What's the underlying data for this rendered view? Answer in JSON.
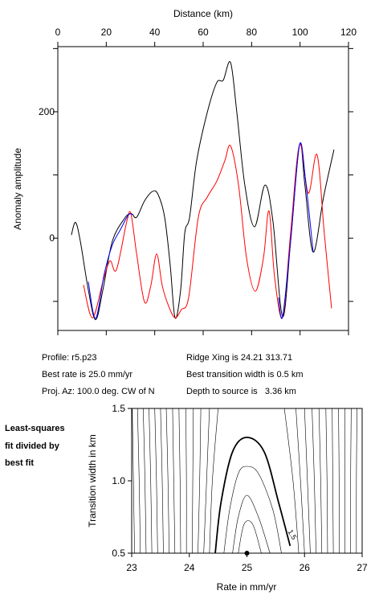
{
  "chart_data": [
    {
      "type": "line",
      "xlabel": "Distance (km)",
      "ylabel": "Anomaly amplitude",
      "xlim": [
        0,
        120
      ],
      "xticks": [
        0,
        20,
        40,
        60,
        80,
        100,
        120
      ],
      "ylim": [
        -146,
        303
      ],
      "yticks": [
        0,
        200
      ],
      "yminor_ticks": [
        -100,
        100,
        300
      ],
      "series": [
        {
          "color": "#000000",
          "x": [
            5.6,
            7.3,
            9.3,
            12.6,
            15.6,
            18.6,
            22.5,
            27.5,
            30.2,
            32.5,
            35.8,
            39.1,
            41.4,
            44.1,
            46.4,
            48.4,
            50.7,
            52.4,
            54.4,
            57.3,
            61.7,
            65.6,
            68.3,
            71.3,
            73.9,
            77.2,
            81.2,
            85.5,
            88.8,
            92.8,
            96.1,
            99.8,
            102,
            105.4,
            109.7,
            114
          ],
          "values": [
            5,
            25,
            -5,
            -82,
            -129,
            -82,
            -5,
            31,
            39,
            33,
            59,
            74,
            69,
            33,
            -43,
            -126,
            -82,
            8,
            33,
            122,
            199,
            246,
            250,
            278,
            199,
            84,
            18,
            84,
            27,
            -124,
            -5,
            148,
            84,
            -22,
            65,
            140
          ]
        },
        {
          "color": "#ff0000",
          "x": [
            10.6,
            14.3,
            18.6,
            21.5,
            24.2,
            28.5,
            30.2,
            32.5,
            35.8,
            38.4,
            40.8,
            43.1,
            45.7,
            48.4,
            51,
            54,
            58,
            61.7,
            65.6,
            68.9,
            71.3,
            74.6,
            77.9,
            81.5,
            84.9,
            87.2,
            89.5,
            92.8,
            96.1,
            99.8,
            103.4,
            107,
            110,
            113
          ],
          "values": [
            -74,
            -126,
            -69,
            -36,
            -50,
            27,
            38,
            -24,
            -101,
            -75,
            -25,
            -75,
            -107,
            -126,
            -113,
            -94,
            33,
            65,
            90,
            122,
            146,
            84,
            -31,
            -84,
            -31,
            43,
            -62,
            -124,
            8,
            148,
            71,
            132,
            8,
            -111
          ]
        },
        {
          "color": "#0000ff",
          "x": [
            12.6,
            15.6,
            19.2,
            22.5,
            25.9,
            29.2,
            31.2,
            null,
            91.1,
            92.8,
            96.1,
            99.8,
            102.4,
            105.4
          ],
          "values": [
            -69,
            -127,
            -56,
            -11,
            14,
            37,
            37,
            null,
            -94,
            -124,
            -5,
            148,
            87,
            -22
          ]
        }
      ]
    },
    {
      "type": "contour",
      "xlabel": "Rate in mm/yr",
      "ylabel": "Transition width in km",
      "xlim": [
        23,
        27
      ],
      "xticks": [
        23,
        24,
        25,
        26,
        27
      ],
      "ylim": [
        0.5,
        1.5
      ],
      "yticks": [
        {
          "value": 0.5,
          "label": "0.5"
        },
        {
          "value": 1.0,
          "label": "1.0"
        },
        {
          "value": 1.5,
          "label": "1.5"
        }
      ],
      "best": {
        "x": 25,
        "y": 0.5
      },
      "contour_label": {
        "x": 25.75,
        "y": 0.62,
        "text": "1.5"
      },
      "bold_contour": 0,
      "contours": [
        {
          "x": [
            24.45,
            24.55,
            24.75,
            25.0,
            25.3,
            25.55,
            25.75
          ],
          "y": [
            0.5,
            0.85,
            1.2,
            1.3,
            1.2,
            0.85,
            0.55
          ]
        },
        {
          "x": [
            24.6,
            24.7,
            24.85,
            25.0,
            25.2,
            25.45,
            25.6
          ],
          "y": [
            0.5,
            0.8,
            1.05,
            1.1,
            1.05,
            0.8,
            0.5
          ]
        },
        {
          "x": [
            24.75,
            24.85,
            25.0,
            25.2,
            25.4
          ],
          "y": [
            0.5,
            0.75,
            0.9,
            0.75,
            0.5
          ]
        },
        {
          "x": [
            24.85,
            24.95,
            25.1,
            25.25
          ],
          "y": [
            0.5,
            0.7,
            0.7,
            0.5
          ]
        },
        {
          "x": [
            24.35,
            24.4,
            24.5
          ],
          "y": [
            0.5,
            1.0,
            1.5
          ]
        },
        {
          "x": [
            24.25,
            24.3,
            24.35
          ],
          "y": [
            0.5,
            1.0,
            1.5
          ]
        },
        {
          "x": [
            24.15,
            24.18,
            24.2
          ],
          "y": [
            0.5,
            1.0,
            1.5
          ]
        },
        {
          "x": [
            24.05,
            24.06,
            24.07
          ],
          "y": [
            0.5,
            1.0,
            1.5
          ]
        },
        {
          "x": [
            23.95,
            23.95,
            23.94
          ],
          "y": [
            0.5,
            1.0,
            1.5
          ]
        },
        {
          "x": [
            23.85,
            23.84,
            23.82
          ],
          "y": [
            0.5,
            1.0,
            1.5
          ]
        },
        {
          "x": [
            23.75,
            23.73,
            23.71
          ],
          "y": [
            0.5,
            1.0,
            1.5
          ]
        },
        {
          "x": [
            23.65,
            23.63,
            23.6
          ],
          "y": [
            0.5,
            1.0,
            1.5
          ]
        },
        {
          "x": [
            23.55,
            23.53,
            23.5
          ],
          "y": [
            0.5,
            1.0,
            1.5
          ]
        },
        {
          "x": [
            23.45,
            23.43,
            23.4
          ],
          "y": [
            0.5,
            1.0,
            1.5
          ]
        },
        {
          "x": [
            23.35,
            23.33,
            23.3
          ],
          "y": [
            0.5,
            1.0,
            1.5
          ]
        },
        {
          "x": [
            23.25,
            23.23,
            23.2
          ],
          "y": [
            0.5,
            1.0,
            1.5
          ]
        },
        {
          "x": [
            23.15,
            23.13,
            23.1
          ],
          "y": [
            0.5,
            1.0,
            1.5
          ]
        },
        {
          "x": [
            23.05,
            23.03,
            23.01
          ],
          "y": [
            0.5,
            1.0,
            1.5
          ]
        },
        {
          "x": [
            25.9,
            25.8,
            25.65
          ],
          "y": [
            0.5,
            1.0,
            1.5
          ]
        },
        {
          "x": [
            26.0,
            25.93,
            25.85
          ],
          "y": [
            0.5,
            1.0,
            1.5
          ]
        },
        {
          "x": [
            26.1,
            26.05,
            26.0
          ],
          "y": [
            0.5,
            1.0,
            1.5
          ]
        },
        {
          "x": [
            26.2,
            26.17,
            26.13
          ],
          "y": [
            0.5,
            1.0,
            1.5
          ]
        },
        {
          "x": [
            26.3,
            26.28,
            26.25
          ],
          "y": [
            0.5,
            1.0,
            1.5
          ]
        },
        {
          "x": [
            26.4,
            26.39,
            26.37
          ],
          "y": [
            0.5,
            1.0,
            1.5
          ]
        },
        {
          "x": [
            26.5,
            26.49,
            26.48
          ],
          "y": [
            0.5,
            1.0,
            1.5
          ]
        },
        {
          "x": [
            26.6,
            26.6,
            26.59
          ],
          "y": [
            0.5,
            1.0,
            1.5
          ]
        },
        {
          "x": [
            26.7,
            26.7,
            26.7
          ],
          "y": [
            0.5,
            1.0,
            1.5
          ]
        },
        {
          "x": [
            26.8,
            26.8,
            26.81
          ],
          "y": [
            0.5,
            1.0,
            1.5
          ]
        },
        {
          "x": [
            26.9,
            26.9,
            26.91
          ],
          "y": [
            0.5,
            1.0,
            1.5
          ]
        }
      ]
    }
  ],
  "profile_info": [
    "Profile: r5.p23",
    "Best rate is 25.0 mm/yr",
    "Proj. Az: 100.0 deg. CW of N",
    "Ridge Xing is 24.21 313.71",
    "Best transition width is 0.5 km",
    "Depth to source is   3.36 km"
  ],
  "side_label": [
    "Least-squares",
    "fit divided by",
    "best fit"
  ]
}
